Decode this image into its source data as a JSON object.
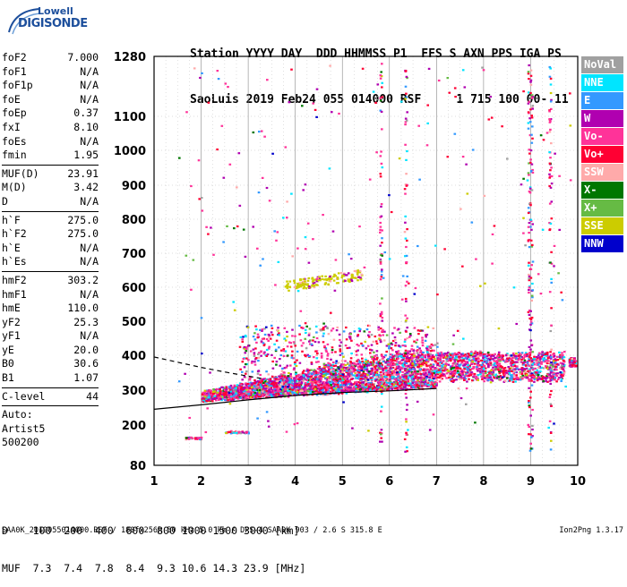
{
  "logo": {
    "line1": "Lowell",
    "line2": "DIGISONDE"
  },
  "header": {
    "line1": "Station YYYY DAY  DDD HHMMSS P1  FFS S AXN PPS IGA PS",
    "line2": "SaoLuis 2019 Feb24 055 014000 RSF     1 715 100 00- 11"
  },
  "params": {
    "group1": [
      {
        "k": "foF2",
        "v": "7.000"
      },
      {
        "k": "foF1",
        "v": "N/A"
      },
      {
        "k": "foF1p",
        "v": "N/A"
      },
      {
        "k": "foE",
        "v": "N/A"
      },
      {
        "k": "foEp",
        "v": "0.37"
      },
      {
        "k": "fxI",
        "v": "8.10"
      },
      {
        "k": "foEs",
        "v": "N/A"
      },
      {
        "k": "fmin",
        "v": "1.95"
      }
    ],
    "group2": [
      {
        "k": "MUF(D)",
        "v": "23.91"
      },
      {
        "k": "M(D)",
        "v": "3.42"
      },
      {
        "k": "D",
        "v": "N/A"
      }
    ],
    "group3": [
      {
        "k": "h`F",
        "v": "275.0"
      },
      {
        "k": "h`F2",
        "v": "275.0"
      },
      {
        "k": "h`E",
        "v": "N/A"
      },
      {
        "k": "h`Es",
        "v": "N/A"
      }
    ],
    "group4": [
      {
        "k": "hmF2",
        "v": "303.2"
      },
      {
        "k": "hmF1",
        "v": "N/A"
      },
      {
        "k": "hmE",
        "v": "110.0"
      },
      {
        "k": "yF2",
        "v": "25.3"
      },
      {
        "k": "yF1",
        "v": "N/A"
      },
      {
        "k": "yE",
        "v": "20.0"
      },
      {
        "k": "B0",
        "v": "30.6"
      },
      {
        "k": "B1",
        "v": "1.07"
      }
    ],
    "group5": [
      {
        "k": "C-level",
        "v": "44"
      }
    ],
    "group6": [
      "Auto:",
      "Artist5",
      "500200"
    ]
  },
  "legend": [
    {
      "label": "NoVal",
      "color": "#a0a0a0"
    },
    {
      "label": "NNE",
      "color": "#00e5ff"
    },
    {
      "label": "E",
      "color": "#3399ff"
    },
    {
      "label": "W",
      "color": "#b000b0"
    },
    {
      "label": "Vo-",
      "color": "#ff3399"
    },
    {
      "label": "Vo+",
      "color": "#ff0033"
    },
    {
      "label": "SSW",
      "color": "#ffaaaa"
    },
    {
      "label": "X-",
      "color": "#007700"
    },
    {
      "label": "X+",
      "color": "#66bb44"
    },
    {
      "label": "SSE",
      "color": "#cccc00"
    },
    {
      "label": "NNW",
      "color": "#0000cc"
    }
  ],
  "footer": {
    "line1": "D    100  200  400  600  800 1000 1500 3000 [km]",
    "line2": "MUF  7.3  7.4  7.8  8.4  9.3 10.6 14.3 23.9 [MHz]",
    "line3": "SAA0K_2019055014000.RSF / 180fx256h 50 kHz 5.0 km / DPS-4 SAA0K 903 / 2.6 S 315.8 E",
    "version": "Ion2Png 1.3.17"
  },
  "chart_data": {
    "type": "scatter",
    "x_ticks": [
      "1",
      "2",
      "3",
      "4",
      "5",
      "6",
      "7",
      "8",
      "9",
      "10"
    ],
    "y_ticks": [
      "80",
      "200",
      "300",
      "400",
      "500",
      "600",
      "700",
      "800",
      "900",
      "1000",
      "1100",
      "1280"
    ],
    "xlim": [
      1,
      10
    ],
    "ylim": [
      80,
      1280
    ],
    "grid": true,
    "legend_position": "right",
    "traces": [
      {
        "name": "virtual-height-profile-solid",
        "x": [
          1.0,
          2.0,
          3.0,
          4.0,
          5.0,
          6.0,
          7.0
        ],
        "y": [
          245,
          258,
          272,
          285,
          293,
          298,
          305
        ]
      },
      {
        "name": "virtual-height-profile-dashed",
        "x": [
          1.0,
          1.5,
          2.0,
          2.5,
          3.0,
          3.3
        ],
        "y": [
          395,
          380,
          365,
          352,
          340,
          333
        ]
      }
    ]
  }
}
